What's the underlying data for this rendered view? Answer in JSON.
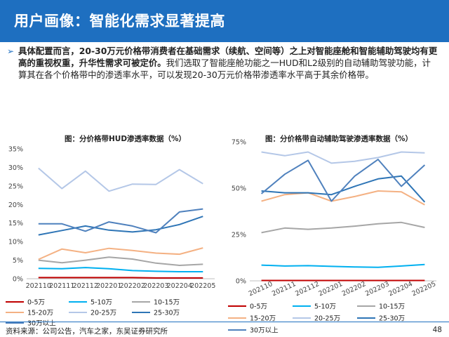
{
  "header": {
    "title": "用户画像：智能化需求显著提高"
  },
  "summary": {
    "bold": "具体配置而言，20-30万元价格带消费者在基础需求（续航、空间等）之上对智能座舱和智能辅助驾驶均有更高的重视权重，升华性需求可被定价。",
    "rest": "我们选取了智能座舱功能之一HUD和L2级别的自动辅助驾驶功能，计算其在各个价格带中的渗透率水平，可以发现20-30万元价格带渗透率水平高于其余价格带。"
  },
  "colors": {
    "header": "#1e6fc0",
    "series": [
      "#c00000",
      "#00b0f0",
      "#a6a6a6",
      "#f4b183",
      "#b4c7e7",
      "#2e75b6",
      "#4f81bd"
    ]
  },
  "chart_data": [
    {
      "type": "line",
      "title": "图：分价格带HUD渗透率数据（%）",
      "x": [
        "202110",
        "202111",
        "202112",
        "202201",
        "202202",
        "202203",
        "202204",
        "202205"
      ],
      "ylim": [
        0,
        35
      ],
      "yticks": [
        "0%",
        "5%",
        "10%",
        "15%",
        "20%",
        "25%",
        "30%",
        "35%"
      ],
      "legend_position": "bottom",
      "series": [
        {
          "name": "0-5万",
          "values": [
            0.3,
            0.3,
            0.3,
            0.3,
            0.3,
            0.2,
            0.2,
            0.2
          ]
        },
        {
          "name": "5-10万",
          "values": [
            2.8,
            2.7,
            3.0,
            2.7,
            2.2,
            2.0,
            1.9,
            1.9
          ]
        },
        {
          "name": "10-15万",
          "values": [
            5.0,
            4.3,
            5.0,
            5.8,
            5.3,
            4.2,
            3.6,
            3.9
          ]
        },
        {
          "name": "15-20万",
          "values": [
            5.2,
            8.0,
            7.0,
            8.2,
            7.6,
            6.9,
            6.6,
            8.3
          ]
        },
        {
          "name": "20-25万",
          "values": [
            29.8,
            24.3,
            29.0,
            23.6,
            25.5,
            25.4,
            29.4,
            25.6
          ]
        },
        {
          "name": "25-30万",
          "values": [
            11.8,
            13.0,
            14.2,
            13.1,
            12.6,
            13.2,
            14.6,
            16.8
          ]
        },
        {
          "name": "30万以上",
          "values": [
            14.8,
            14.8,
            12.8,
            15.3,
            14.2,
            12.4,
            18.0,
            18.8
          ]
        }
      ]
    },
    {
      "type": "line",
      "title": "图：分价格带自动辅助驾驶渗透率数据（%）",
      "x": [
        "202110",
        "202111",
        "202112",
        "202201",
        "202202",
        "202203",
        "202204",
        "202205"
      ],
      "ylim": [
        0,
        75
      ],
      "yticks": [
        "0%",
        "25%",
        "50%",
        "75%"
      ],
      "legend_position": "bottom",
      "series": [
        {
          "name": "0-5万",
          "values": [
            0.2,
            0.2,
            0.2,
            0.2,
            0.2,
            0.2,
            0.2,
            0.2
          ]
        },
        {
          "name": "5-10万",
          "values": [
            8.5,
            8.0,
            8.2,
            7.8,
            7.5,
            7.3,
            8.0,
            8.8
          ]
        },
        {
          "name": "10-15万",
          "values": [
            26.0,
            28.5,
            27.8,
            28.5,
            29.5,
            30.8,
            31.5,
            28.8
          ]
        },
        {
          "name": "15-20万",
          "values": [
            43.0,
            46.5,
            47.5,
            43.0,
            45.5,
            48.5,
            48.0,
            41.0
          ]
        },
        {
          "name": "20-25万",
          "values": [
            69.5,
            67.5,
            69.5,
            63.5,
            64.5,
            66.5,
            69.5,
            69.0
          ]
        },
        {
          "name": "25-30万",
          "values": [
            48.5,
            47.5,
            47.5,
            46.5,
            51.0,
            55.0,
            56.5,
            42.5
          ]
        },
        {
          "name": "30万以上",
          "values": [
            47.0,
            57.5,
            65.0,
            43.0,
            56.5,
            65.5,
            51.0,
            62.5
          ]
        }
      ]
    }
  ],
  "source": "资料来源：公司公告，汽车之家，东吴证券研究所",
  "page_number": "48"
}
